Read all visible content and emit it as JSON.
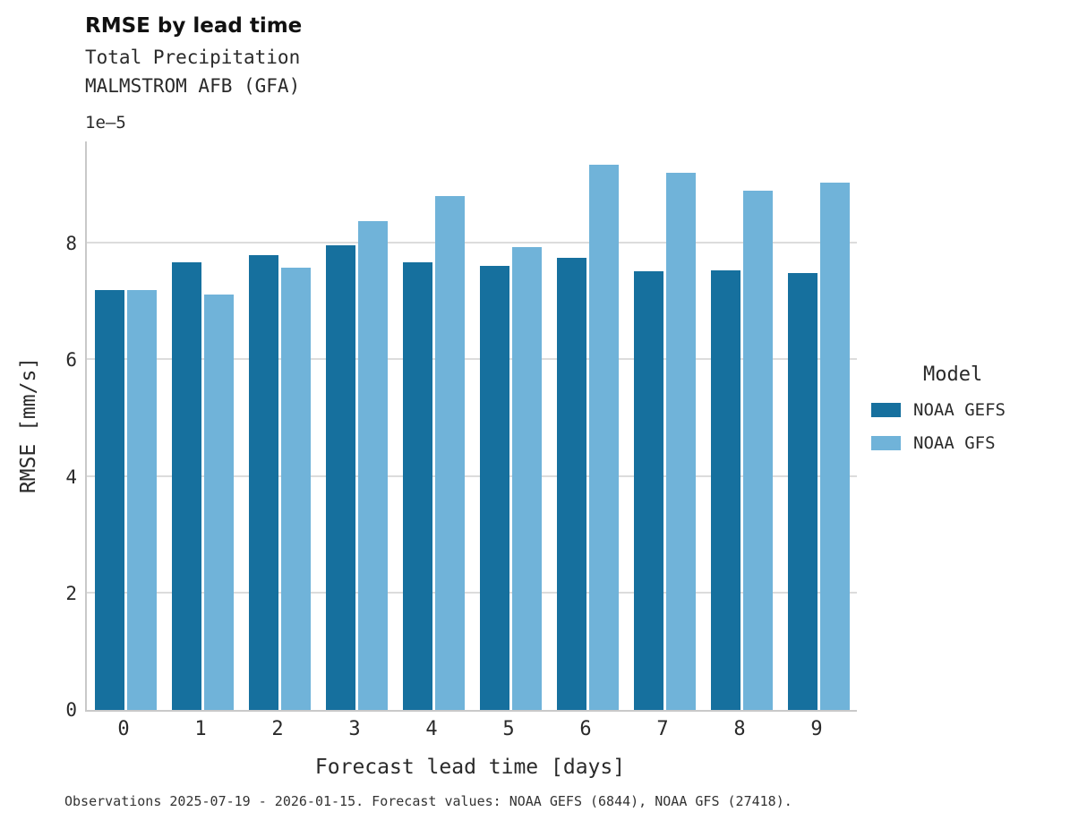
{
  "title": "RMSE by lead time",
  "subtitle1": "Total Precipitation",
  "subtitle2": "MALMSTROM AFB (GFA)",
  "footnote": "Observations 2025-07-19 - 2026-01-15. Forecast values: NOAA GEFS (6844), NOAA GFS (27418).",
  "legend": {
    "title": "Model"
  },
  "chart_data": {
    "type": "bar",
    "title": "RMSE by lead time",
    "subtitle": "Total Precipitation — MALMSTROM AFB (GFA)",
    "xlabel": "Forecast lead time [days]",
    "ylabel": "RMSE [mm/s]",
    "y_multiplier": "1e–5",
    "categories": [
      "0",
      "1",
      "2",
      "3",
      "4",
      "5",
      "6",
      "7",
      "8",
      "9"
    ],
    "series": [
      {
        "name": "NOAA GEFS",
        "color": "#16709e",
        "values": [
          7.2,
          7.68,
          7.8,
          7.97,
          7.68,
          7.62,
          7.75,
          7.52,
          7.54,
          7.5
        ]
      },
      {
        "name": "NOAA GFS",
        "color": "#70b3d9",
        "values": [
          7.2,
          7.12,
          7.58,
          8.38,
          8.82,
          7.94,
          9.35,
          9.22,
          8.9,
          9.05
        ]
      }
    ],
    "value_scale": "values are in units of 1e-5 mm/s",
    "ylim": [
      0,
      9.75
    ],
    "yticks": [
      0,
      2,
      4,
      6,
      8
    ],
    "grid": true,
    "legend_position": "right"
  }
}
